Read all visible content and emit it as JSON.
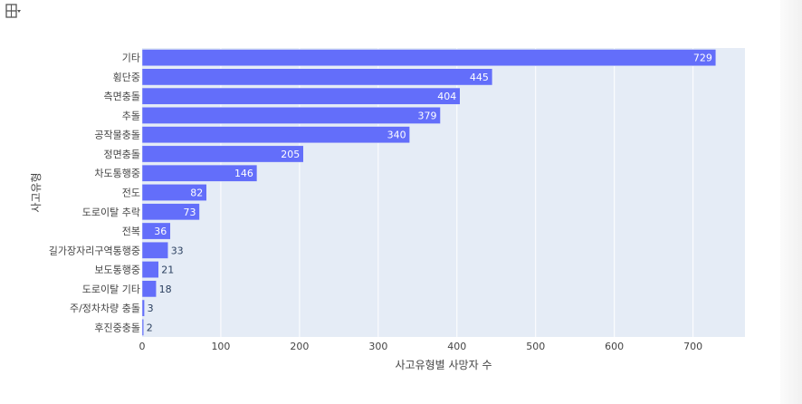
{
  "toolbar": {
    "icon": "toggle-spike-lines-icon"
  },
  "chart_data": {
    "type": "bar",
    "orientation": "horizontal",
    "categories": [
      "기타",
      "횡단중",
      "측면충돌",
      "추돌",
      "공작물충돌",
      "정면충돌",
      "차도통행중",
      "전도",
      "도로이탈 추락",
      "전복",
      "길가장자리구역통행중",
      "보도통행중",
      "도로이탈 기타",
      "주/정차차량 충돌",
      "후진중충돌"
    ],
    "values": [
      729,
      445,
      404,
      379,
      340,
      205,
      146,
      82,
      73,
      36,
      33,
      21,
      18,
      3,
      2
    ],
    "xlabel": "사고유형별 사망자 수",
    "ylabel": "사고유형",
    "xlim": [
      0,
      766
    ],
    "xticks": [
      0,
      100,
      200,
      300,
      400,
      500,
      600,
      700
    ],
    "grid": true,
    "legend": "none",
    "colors": {
      "bar": "#636efa",
      "plot_bg": "#e5ecf6",
      "grid": "#ffffff",
      "text": "#444444",
      "label_inside": "#ffffff",
      "label_outside": "#2a3f5f"
    }
  }
}
